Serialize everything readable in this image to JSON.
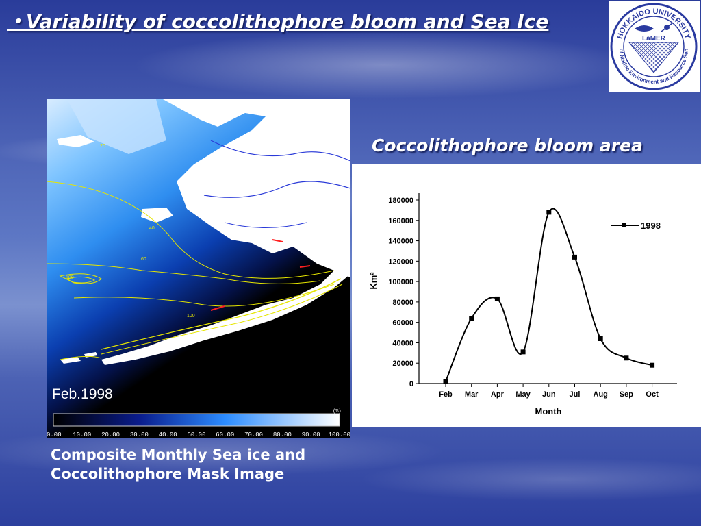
{
  "slide": {
    "title": "・Variability of  coccolithophore bloom and Sea Ice",
    "bloom_area_title": "Coccolithophore bloom area"
  },
  "logo": {
    "top_text": "HOKKAIDO UNIVERSITY",
    "center_text": "LaMER",
    "ring_text": "Lab of Marine Environment and Resource Sensing"
  },
  "map": {
    "date_label": "Feb.1998",
    "colorbar_unit": "(%)",
    "colorbar_ticks": [
      "0.00",
      "10.00",
      "20.00",
      "30.00",
      "40.00",
      "50.00",
      "60.00",
      "70.00",
      "80.00",
      "90.00",
      "100.00"
    ],
    "contour_labels": [
      "20",
      "40",
      "60",
      "100",
      "100"
    ],
    "caption_line1": "Composite Monthly Sea ice and",
    "caption_line2": "Coccolithophore Mask Image"
  },
  "chart_data": {
    "type": "line",
    "categories": [
      "Feb",
      "Mar",
      "Apr",
      "May",
      "Jun",
      "Jul",
      "Aug",
      "Sep",
      "Oct"
    ],
    "series": [
      {
        "name": "1998",
        "values": [
          2000,
          64000,
          83000,
          31000,
          168000,
          124000,
          44000,
          25000,
          18000
        ]
      }
    ],
    "xlabel": "Month",
    "ylabel": "Km²",
    "ylim": [
      0,
      180000
    ],
    "yticks": [
      0,
      20000,
      40000,
      60000,
      80000,
      100000,
      120000,
      140000,
      160000,
      180000
    ],
    "legend_position": "top-right",
    "grid": false
  }
}
